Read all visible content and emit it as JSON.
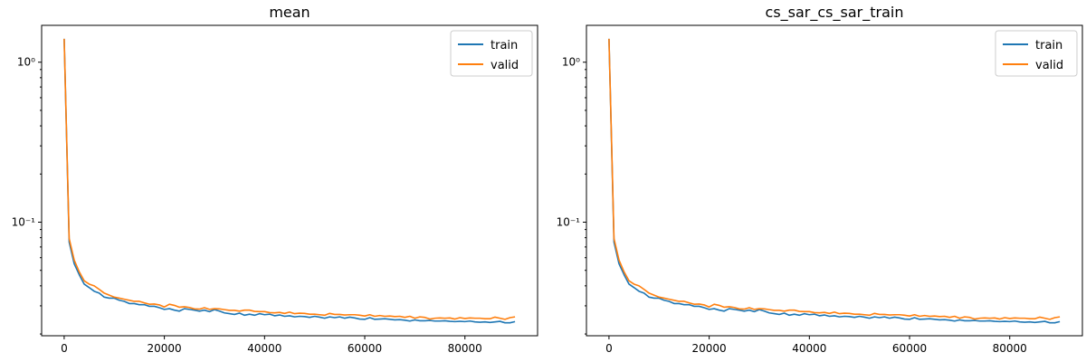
{
  "chart_data": [
    {
      "type": "line",
      "title": "mean",
      "xlabel": "",
      "ylabel": "",
      "yscale": "log",
      "xlim": [
        -4500,
        94500
      ],
      "ylim": [
        0.0195,
        1.7
      ],
      "xticks": [
        0,
        20000,
        40000,
        60000,
        80000
      ],
      "xtick_labels": [
        "0",
        "20000",
        "40000",
        "60000",
        "80000"
      ],
      "yticks": [
        0.1,
        1
      ],
      "ytick_labels": [
        "10⁻¹",
        "10⁰"
      ],
      "legend": "top-right",
      "grid": false,
      "x": [
        0,
        1000,
        2000,
        3000,
        4000,
        5000,
        6000,
        7000,
        8000,
        9000,
        10000,
        11000,
        12000,
        13000,
        14000,
        15000,
        16000,
        17000,
        18000,
        19000,
        20000,
        21000,
        22000,
        23000,
        24000,
        25000,
        26000,
        27000,
        28000,
        29000,
        30000,
        31000,
        32000,
        33000,
        34000,
        35000,
        36000,
        37000,
        38000,
        39000,
        40000,
        41000,
        42000,
        43000,
        44000,
        45000,
        46000,
        47000,
        48000,
        49000,
        50000,
        51000,
        52000,
        53000,
        54000,
        55000,
        56000,
        57000,
        58000,
        59000,
        60000,
        61000,
        62000,
        63000,
        64000,
        65000,
        66000,
        67000,
        68000,
        69000,
        70000,
        71000,
        72000,
        73000,
        74000,
        75000,
        76000,
        77000,
        78000,
        79000,
        80000,
        81000,
        82000,
        83000,
        84000,
        85000,
        86000,
        87000,
        88000,
        89000,
        90000
      ],
      "series": [
        {
          "name": "train",
          "color": "#1f77b4",
          "values": [
            1.4,
            0.075,
            0.055,
            0.047,
            0.041,
            0.039,
            0.037,
            0.036,
            0.034,
            0.0335,
            0.0335,
            0.0325,
            0.032,
            0.031,
            0.031,
            0.0305,
            0.0305,
            0.0298,
            0.0298,
            0.0292,
            0.0285,
            0.0288,
            0.0282,
            0.0278,
            0.0288,
            0.0285,
            0.0282,
            0.0278,
            0.0282,
            0.0276,
            0.0284,
            0.0278,
            0.0271,
            0.0268,
            0.0265,
            0.027,
            0.0262,
            0.0266,
            0.0262,
            0.0268,
            0.0264,
            0.0266,
            0.026,
            0.0263,
            0.0258,
            0.026,
            0.0256,
            0.0258,
            0.0257,
            0.0254,
            0.0258,
            0.0255,
            0.0251,
            0.0256,
            0.0253,
            0.0256,
            0.0251,
            0.0255,
            0.0252,
            0.0248,
            0.0247,
            0.0253,
            0.0247,
            0.0248,
            0.0249,
            0.0247,
            0.0245,
            0.0246,
            0.0244,
            0.0241,
            0.0245,
            0.0242,
            0.0242,
            0.0243,
            0.0241,
            0.0241,
            0.0242,
            0.024,
            0.0239,
            0.024,
            0.0239,
            0.0241,
            0.0238,
            0.0237,
            0.0238,
            0.0236,
            0.0238,
            0.024,
            0.0235,
            0.0235,
            0.0239
          ]
        },
        {
          "name": "valid",
          "color": "#ff7f0e",
          "values": [
            1.4,
            0.079,
            0.058,
            0.049,
            0.043,
            0.041,
            0.04,
            0.038,
            0.036,
            0.035,
            0.034,
            0.0335,
            0.033,
            0.0325,
            0.032,
            0.032,
            0.0313,
            0.0307,
            0.0308,
            0.0304,
            0.0295,
            0.0307,
            0.0302,
            0.0294,
            0.0296,
            0.0293,
            0.0287,
            0.0286,
            0.0292,
            0.0285,
            0.0288,
            0.0287,
            0.0284,
            0.0281,
            0.0281,
            0.0278,
            0.0282,
            0.0282,
            0.0277,
            0.0276,
            0.0276,
            0.0272,
            0.0271,
            0.0273,
            0.0269,
            0.0274,
            0.0268,
            0.027,
            0.0269,
            0.0266,
            0.0266,
            0.0264,
            0.0262,
            0.0269,
            0.0265,
            0.0265,
            0.0263,
            0.0264,
            0.0264,
            0.0262,
            0.0259,
            0.0264,
            0.0258,
            0.0261,
            0.0258,
            0.0259,
            0.0257,
            0.0258,
            0.0254,
            0.0258,
            0.0251,
            0.0256,
            0.0254,
            0.0248,
            0.0251,
            0.0252,
            0.0251,
            0.0252,
            0.0248,
            0.0253,
            0.025,
            0.0252,
            0.0251,
            0.0251,
            0.0249,
            0.0249,
            0.0255,
            0.0251,
            0.0247,
            0.0253,
            0.0256
          ]
        }
      ]
    },
    {
      "type": "line",
      "title": "cs_sar_cs_sar_train",
      "xlabel": "",
      "ylabel": "",
      "yscale": "log",
      "xlim": [
        -4500,
        94500
      ],
      "ylim": [
        0.0195,
        1.7
      ],
      "xticks": [
        0,
        20000,
        40000,
        60000,
        80000
      ],
      "xtick_labels": [
        "0",
        "20000",
        "40000",
        "60000",
        "80000"
      ],
      "yticks": [
        0.1,
        1
      ],
      "ytick_labels": [
        "10⁻¹",
        "10⁰"
      ],
      "legend": "top-right",
      "grid": false,
      "x": [
        0,
        1000,
        2000,
        3000,
        4000,
        5000,
        6000,
        7000,
        8000,
        9000,
        10000,
        11000,
        12000,
        13000,
        14000,
        15000,
        16000,
        17000,
        18000,
        19000,
        20000,
        21000,
        22000,
        23000,
        24000,
        25000,
        26000,
        27000,
        28000,
        29000,
        30000,
        31000,
        32000,
        33000,
        34000,
        35000,
        36000,
        37000,
        38000,
        39000,
        40000,
        41000,
        42000,
        43000,
        44000,
        45000,
        46000,
        47000,
        48000,
        49000,
        50000,
        51000,
        52000,
        53000,
        54000,
        55000,
        56000,
        57000,
        58000,
        59000,
        60000,
        61000,
        62000,
        63000,
        64000,
        65000,
        66000,
        67000,
        68000,
        69000,
        70000,
        71000,
        72000,
        73000,
        74000,
        75000,
        76000,
        77000,
        78000,
        79000,
        80000,
        81000,
        82000,
        83000,
        84000,
        85000,
        86000,
        87000,
        88000,
        89000,
        90000
      ],
      "series": [
        {
          "name": "train",
          "color": "#1f77b4",
          "values": [
            1.4,
            0.075,
            0.055,
            0.047,
            0.041,
            0.039,
            0.037,
            0.036,
            0.034,
            0.0335,
            0.0335,
            0.0325,
            0.032,
            0.031,
            0.031,
            0.0305,
            0.0305,
            0.0298,
            0.0298,
            0.0292,
            0.0285,
            0.0288,
            0.0282,
            0.0278,
            0.0288,
            0.0285,
            0.0282,
            0.0278,
            0.0282,
            0.0276,
            0.0284,
            0.0278,
            0.0271,
            0.0268,
            0.0265,
            0.027,
            0.0262,
            0.0266,
            0.0262,
            0.0268,
            0.0264,
            0.0266,
            0.026,
            0.0263,
            0.0258,
            0.026,
            0.0256,
            0.0258,
            0.0257,
            0.0254,
            0.0258,
            0.0255,
            0.0251,
            0.0256,
            0.0253,
            0.0256,
            0.0251,
            0.0255,
            0.0252,
            0.0248,
            0.0247,
            0.0253,
            0.0247,
            0.0248,
            0.0249,
            0.0247,
            0.0245,
            0.0246,
            0.0244,
            0.0241,
            0.0245,
            0.0242,
            0.0242,
            0.0243,
            0.0241,
            0.0241,
            0.0242,
            0.024,
            0.0239,
            0.024,
            0.0239,
            0.0241,
            0.0238,
            0.0237,
            0.0238,
            0.0236,
            0.0238,
            0.024,
            0.0235,
            0.0235,
            0.0239
          ]
        },
        {
          "name": "valid",
          "color": "#ff7f0e",
          "values": [
            1.4,
            0.079,
            0.058,
            0.049,
            0.043,
            0.041,
            0.04,
            0.038,
            0.036,
            0.035,
            0.034,
            0.0335,
            0.033,
            0.0325,
            0.032,
            0.032,
            0.0313,
            0.0307,
            0.0308,
            0.0304,
            0.0295,
            0.0307,
            0.0302,
            0.0294,
            0.0296,
            0.0293,
            0.0287,
            0.0286,
            0.0292,
            0.0285,
            0.0288,
            0.0287,
            0.0284,
            0.0281,
            0.0281,
            0.0278,
            0.0282,
            0.0282,
            0.0277,
            0.0276,
            0.0276,
            0.0272,
            0.0271,
            0.0273,
            0.0269,
            0.0274,
            0.0268,
            0.027,
            0.0269,
            0.0266,
            0.0266,
            0.0264,
            0.0262,
            0.0269,
            0.0265,
            0.0265,
            0.0263,
            0.0264,
            0.0264,
            0.0262,
            0.0259,
            0.0264,
            0.0258,
            0.0261,
            0.0258,
            0.0259,
            0.0257,
            0.0258,
            0.0254,
            0.0258,
            0.0251,
            0.0256,
            0.0254,
            0.0248,
            0.0251,
            0.0252,
            0.0251,
            0.0252,
            0.0248,
            0.0253,
            0.025,
            0.0252,
            0.0251,
            0.0251,
            0.0249,
            0.0249,
            0.0255,
            0.0251,
            0.0247,
            0.0253,
            0.0256
          ]
        }
      ]
    }
  ]
}
